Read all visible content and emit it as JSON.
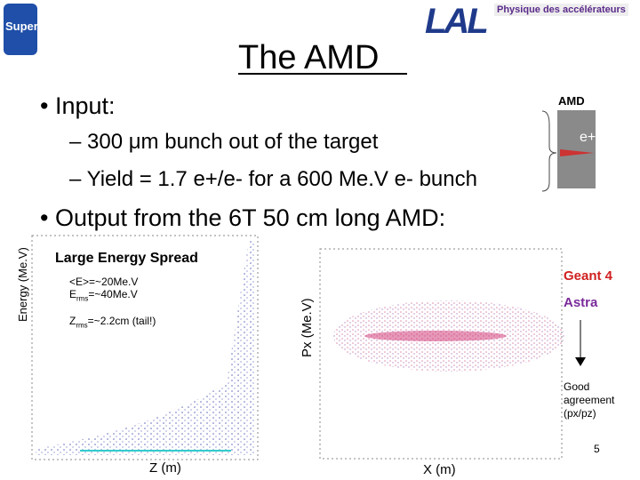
{
  "header": {
    "logo": "SuperB",
    "lab": "Physique des accélérateurs",
    "title": "The AMD"
  },
  "bullets": {
    "input": "Input:",
    "sub": [
      "– 300 μm bunch out of the target",
      "– Yield = 1.7 e+/e- for a 600 Me.V e- bunch"
    ],
    "output": "Output from the 6T 50 cm long AMD:"
  },
  "inset": {
    "label": "AMD",
    "particle": "e+"
  },
  "left_plot": {
    "ylabel": "Energy (Me.V)",
    "xlabel": "Z (m)",
    "title": "Large Energy Spread",
    "notes": [
      [
        "<E>=~20Me.V"
      ],
      [
        "E",
        "rms",
        "=~40Me.V"
      ],
      [
        "Z",
        "rms",
        "=~2.2cm (tail!)"
      ]
    ]
  },
  "right_plot": {
    "ylabel": "Px (Me.V)",
    "xlabel": "X (m)"
  },
  "legend": {
    "geant": "Geant 4",
    "astra": "Astra",
    "note": "Good agreement (px/pz)"
  },
  "page": "5"
}
